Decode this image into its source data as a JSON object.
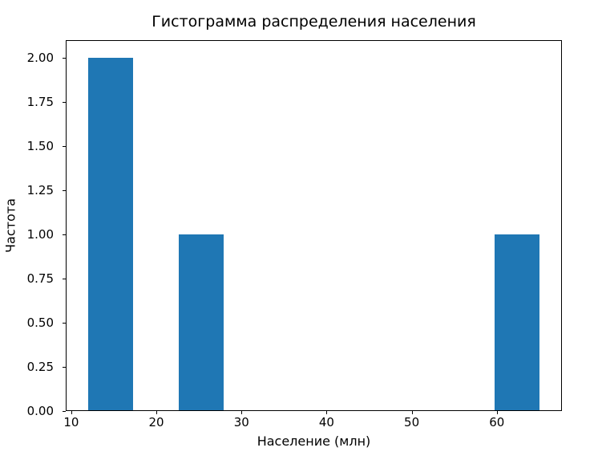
{
  "chart_data": {
    "type": "bar",
    "subtype": "histogram",
    "title": "Гистограмма распределения населения",
    "xlabel": "Население (млн)",
    "ylabel": "Частота",
    "bar_color": "#1f77b4",
    "background_color": "#ffffff",
    "axis_color": "#000000",
    "grid": false,
    "legend": null,
    "xlim": [
      9.35,
      67.65
    ],
    "ylim": [
      0,
      2.1
    ],
    "xticks": [
      {
        "value": 10,
        "label": "10"
      },
      {
        "value": 20,
        "label": "20"
      },
      {
        "value": 30,
        "label": "30"
      },
      {
        "value": 40,
        "label": "40"
      },
      {
        "value": 50,
        "label": "50"
      },
      {
        "value": 60,
        "label": "60"
      }
    ],
    "yticks": [
      {
        "value": 0.0,
        "label": "0.00"
      },
      {
        "value": 0.25,
        "label": "0.25"
      },
      {
        "value": 0.5,
        "label": "0.50"
      },
      {
        "value": 0.75,
        "label": "0.75"
      },
      {
        "value": 1.0,
        "label": "1.00"
      },
      {
        "value": 1.25,
        "label": "1.25"
      },
      {
        "value": 1.5,
        "label": "1.50"
      },
      {
        "value": 1.75,
        "label": "1.75"
      },
      {
        "value": 2.0,
        "label": "2.00"
      }
    ],
    "bins": [
      {
        "x0": 12.0,
        "x1": 17.3,
        "count": 2
      },
      {
        "x0": 22.6,
        "x1": 27.9,
        "count": 1
      },
      {
        "x0": 59.7,
        "x1": 65.0,
        "count": 1
      }
    ],
    "frequencies": [
      2,
      1,
      1
    ]
  }
}
